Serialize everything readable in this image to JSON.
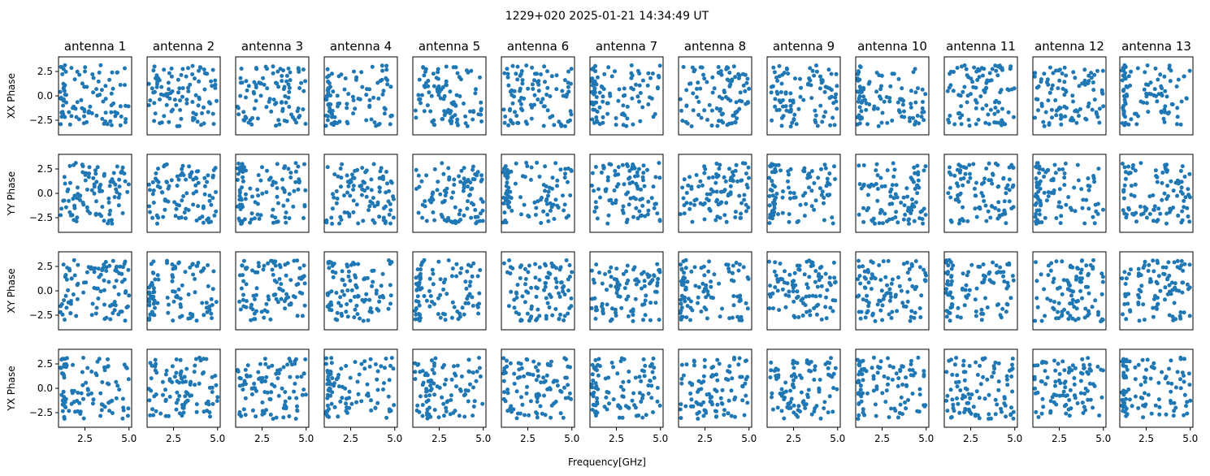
{
  "figure": {
    "suptitle": "1229+020 2025-01-21 14:34:49 UT",
    "xlabel": "Frequency[GHz]"
  },
  "chart_data": {
    "type": "scatter",
    "title": "1229+020 2025-01-21 14:34:49 UT",
    "xlabel": "Frequency[GHz]",
    "columns": [
      "antenna 1",
      "antenna 2",
      "antenna 3",
      "antenna 4",
      "antenna 5",
      "antenna 6",
      "antenna 7",
      "antenna 8",
      "antenna 9",
      "antenna 10",
      "antenna 11",
      "antenna 12",
      "antenna 13"
    ],
    "rows": [
      "XX Phase",
      "YY Phase",
      "XY Phase",
      "YX Phase"
    ],
    "xlim": [
      1.0,
      5.15
    ],
    "ylim": [
      -4.0,
      4.0
    ],
    "xticks": [
      2.5,
      5.0
    ],
    "xtick_labels": [
      "2.5",
      "5.0"
    ],
    "xticks_shown_on": "bottom row only",
    "yticks": [
      -2.5,
      0.0,
      2.5
    ],
    "ytick_labels": [
      "−2.5",
      "0.0",
      "2.5"
    ],
    "yticks_shown_on": "first column only",
    "grid": false,
    "marker_color": "#1f77b4",
    "points_per_panel": 100,
    "frequency_range_ghz": [
      1.1,
      5.0
    ],
    "phase_range": [
      -3.1416,
      3.1416
    ],
    "note_series": "Each panel shows ~100 phase samples (radians) wrapped to [-pi, pi] versus frequency; points are scattered across the full phase range."
  }
}
